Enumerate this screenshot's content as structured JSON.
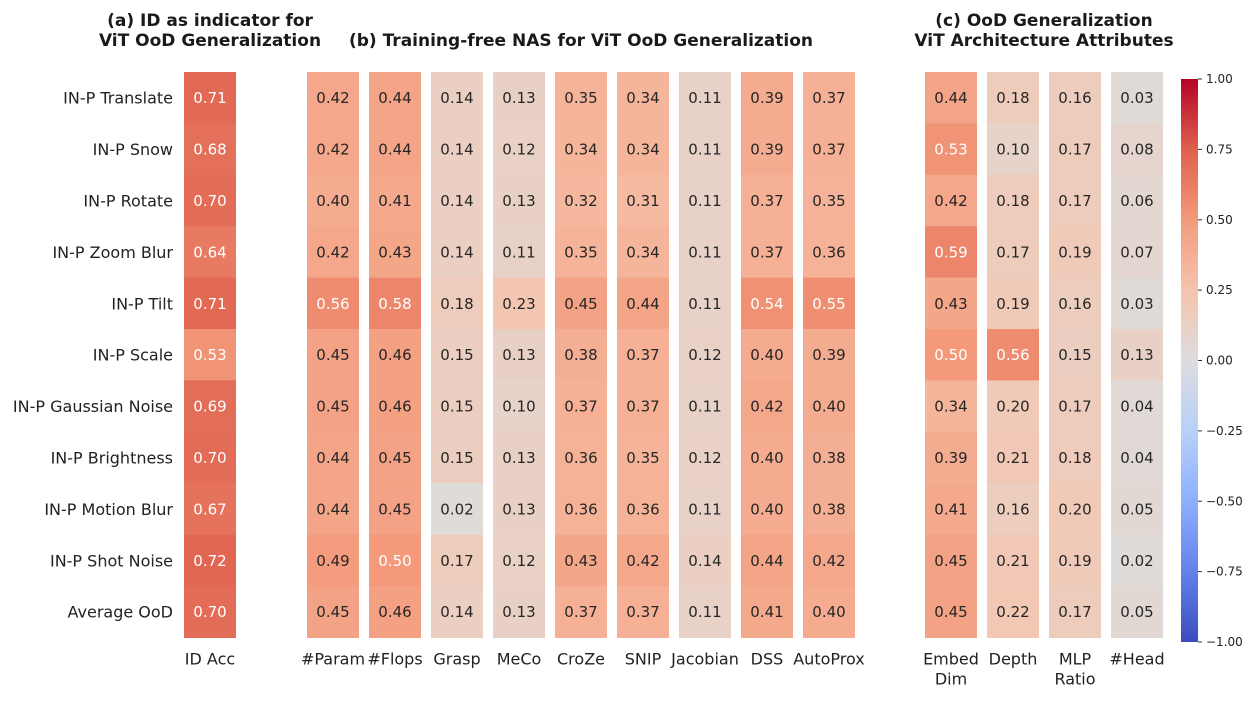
{
  "chart_data": {
    "type": "heatmap",
    "rows": [
      "IN-P Translate",
      "IN-P Snow",
      "IN-P Rotate",
      "IN-P Zoom Blur",
      "IN-P Tilt",
      "IN-P Scale",
      "IN-P Gaussian Noise",
      "IN-P Brightness",
      "IN-P Motion Blur",
      "IN-P Shot Noise",
      "Average OoD"
    ],
    "colorbar": {
      "vmin": -1.0,
      "vmax": 1.0,
      "ticks": [
        1.0,
        0.75,
        0.5,
        0.25,
        0.0,
        -0.25,
        -0.5,
        -0.75,
        -1.0
      ],
      "tick_labels": [
        "1.00",
        "0.75",
        "0.50",
        "0.25",
        "0.00",
        "−0.25",
        "−0.50",
        "−0.75",
        "−1.00"
      ],
      "colormap": "coolwarm"
    },
    "panels": [
      {
        "title": [
          "(a) ID as indicator for",
          "ViT OoD Generalization"
        ],
        "columns": [
          [
            "ID Acc"
          ]
        ],
        "values": [
          [
            0.71
          ],
          [
            0.68
          ],
          [
            0.7
          ],
          [
            0.64
          ],
          [
            0.71
          ],
          [
            0.53
          ],
          [
            0.69
          ],
          [
            0.7
          ],
          [
            0.67
          ],
          [
            0.72
          ],
          [
            0.7
          ]
        ]
      },
      {
        "title": [
          "(b) Training-free NAS for ViT OoD Generalization"
        ],
        "columns": [
          [
            "#Param"
          ],
          [
            "#Flops"
          ],
          [
            "Grasp"
          ],
          [
            "MeCo"
          ],
          [
            "CroZe"
          ],
          [
            "SNIP"
          ],
          [
            "Jacobian"
          ],
          [
            "DSS"
          ],
          [
            "AutoProx"
          ]
        ],
        "values": [
          [
            0.42,
            0.44,
            0.14,
            0.13,
            0.35,
            0.34,
            0.11,
            0.39,
            0.37
          ],
          [
            0.42,
            0.44,
            0.14,
            0.12,
            0.34,
            0.34,
            0.11,
            0.39,
            0.37
          ],
          [
            0.4,
            0.41,
            0.14,
            0.13,
            0.32,
            0.31,
            0.11,
            0.37,
            0.35
          ],
          [
            0.42,
            0.43,
            0.14,
            0.11,
            0.35,
            0.34,
            0.11,
            0.37,
            0.36
          ],
          [
            0.56,
            0.58,
            0.18,
            0.23,
            0.45,
            0.44,
            0.11,
            0.54,
            0.55
          ],
          [
            0.45,
            0.46,
            0.15,
            0.13,
            0.38,
            0.37,
            0.12,
            0.4,
            0.39
          ],
          [
            0.45,
            0.46,
            0.15,
            0.1,
            0.37,
            0.37,
            0.11,
            0.42,
            0.4
          ],
          [
            0.44,
            0.45,
            0.15,
            0.13,
            0.36,
            0.35,
            0.12,
            0.4,
            0.38
          ],
          [
            0.44,
            0.45,
            0.02,
            0.13,
            0.36,
            0.36,
            0.11,
            0.4,
            0.38
          ],
          [
            0.49,
            0.5,
            0.17,
            0.12,
            0.43,
            0.42,
            0.14,
            0.44,
            0.42
          ],
          [
            0.45,
            0.46,
            0.14,
            0.13,
            0.37,
            0.37,
            0.11,
            0.41,
            0.4
          ]
        ]
      },
      {
        "title": [
          "(c) OoD Generalization",
          "ViT Architecture Attributes"
        ],
        "columns": [
          [
            "Embed",
            "Dim"
          ],
          [
            "Depth"
          ],
          [
            "MLP",
            "Ratio"
          ],
          [
            "#Head"
          ]
        ],
        "values": [
          [
            0.44,
            0.18,
            0.16,
            0.03
          ],
          [
            0.53,
            0.1,
            0.17,
            0.08
          ],
          [
            0.42,
            0.18,
            0.17,
            0.06
          ],
          [
            0.59,
            0.17,
            0.19,
            0.07
          ],
          [
            0.43,
            0.19,
            0.16,
            0.03
          ],
          [
            0.5,
            0.56,
            0.15,
            0.13
          ],
          [
            0.34,
            0.2,
            0.17,
            0.04
          ],
          [
            0.39,
            0.21,
            0.18,
            0.04
          ],
          [
            0.41,
            0.16,
            0.2,
            0.05
          ],
          [
            0.45,
            0.21,
            0.19,
            0.02
          ],
          [
            0.45,
            0.22,
            0.17,
            0.05
          ]
        ]
      }
    ]
  }
}
